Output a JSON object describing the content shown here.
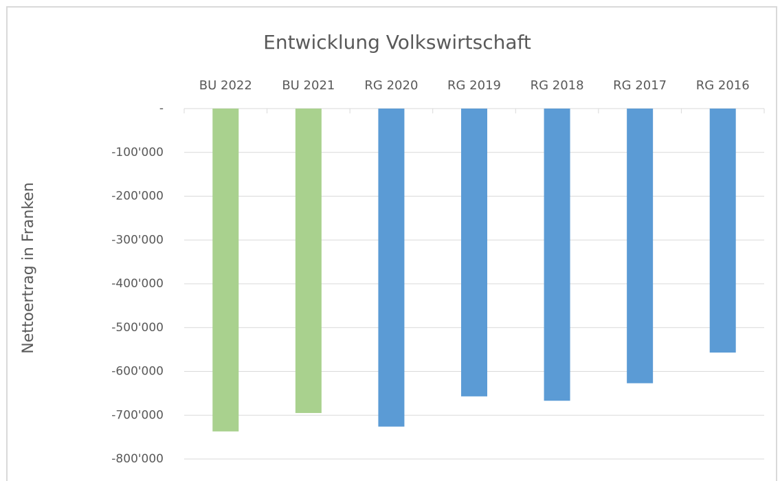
{
  "chart_data": {
    "type": "bar",
    "title": "Entwicklung Volkswirtschaft",
    "y_axis_label": "Nettoertrag in Franken",
    "categories": [
      "BU 2022",
      "BU 2021",
      "RG 2020",
      "RG 2019",
      "RG 2018",
      "RG 2017",
      "RG 2016"
    ],
    "values": [
      -737000,
      -695000,
      -726000,
      -657000,
      -667000,
      -627000,
      -557000
    ],
    "colors": [
      "#a9d18e",
      "#a9d18e",
      "#5b9bd5",
      "#5b9bd5",
      "#5b9bd5",
      "#5b9bd5",
      "#5b9bd5"
    ],
    "ylim": [
      -800000,
      0
    ],
    "yticks": [
      {
        "value": 0,
        "label": "-"
      },
      {
        "value": -100000,
        "label": "-100'000"
      },
      {
        "value": -200000,
        "label": "-200'000"
      },
      {
        "value": -300000,
        "label": "-300'000"
      },
      {
        "value": -400000,
        "label": "-400'000"
      },
      {
        "value": -500000,
        "label": "-500'000"
      },
      {
        "value": -600000,
        "label": "-600'000"
      },
      {
        "value": -700000,
        "label": "-700'000"
      },
      {
        "value": -800000,
        "label": "-800'000"
      }
    ],
    "grid": true
  }
}
